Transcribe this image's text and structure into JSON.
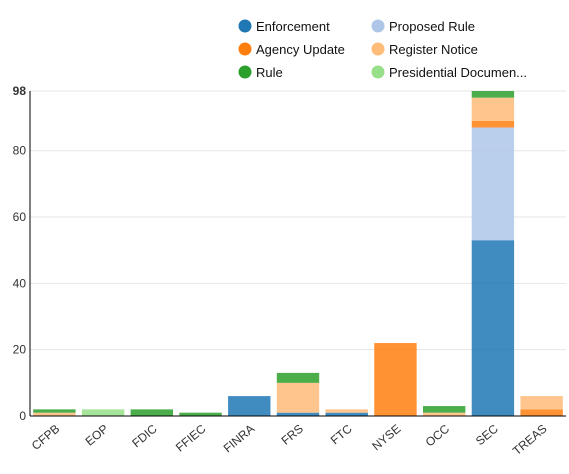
{
  "chart_data": {
    "type": "bar",
    "stacked": true,
    "categories": [
      "CFPB",
      "EOP",
      "FDIC",
      "FFIEC",
      "FINRA",
      "FRS",
      "FTC",
      "NYSE",
      "OCC",
      "SEC",
      "TREAS"
    ],
    "series": [
      {
        "name": "Enforcement",
        "color": "#1f77b4",
        "values": [
          0,
          0,
          0,
          0,
          6,
          1,
          1,
          0,
          0,
          53,
          0
        ]
      },
      {
        "name": "Proposed Rule",
        "color": "#aec7e8",
        "values": [
          0,
          0,
          0,
          0,
          0,
          0,
          0,
          0,
          0,
          34,
          0
        ]
      },
      {
        "name": "Agency Update",
        "color": "#ff7f0e",
        "values": [
          0,
          0,
          0,
          0,
          0,
          0,
          0,
          22,
          0,
          2,
          2
        ]
      },
      {
        "name": "Register Notice",
        "color": "#ffbb78",
        "values": [
          1,
          0,
          0,
          0,
          0,
          9,
          1,
          0,
          1,
          7,
          4
        ]
      },
      {
        "name": "Rule",
        "color": "#2ca02c",
        "values": [
          1,
          0,
          2,
          1,
          0,
          3,
          0,
          0,
          2,
          2,
          0
        ]
      },
      {
        "name": "Presidential Documen...",
        "color": "#98df8a",
        "values": [
          0,
          2,
          0,
          0,
          0,
          0,
          0,
          0,
          0,
          0,
          0
        ]
      }
    ],
    "ylim": [
      0,
      98
    ],
    "yticks": [
      0,
      20,
      40,
      60,
      80
    ],
    "ymax_label": "98",
    "xlabel": "",
    "ylabel": "",
    "title": "",
    "legend_position": "top",
    "grid": true
  }
}
